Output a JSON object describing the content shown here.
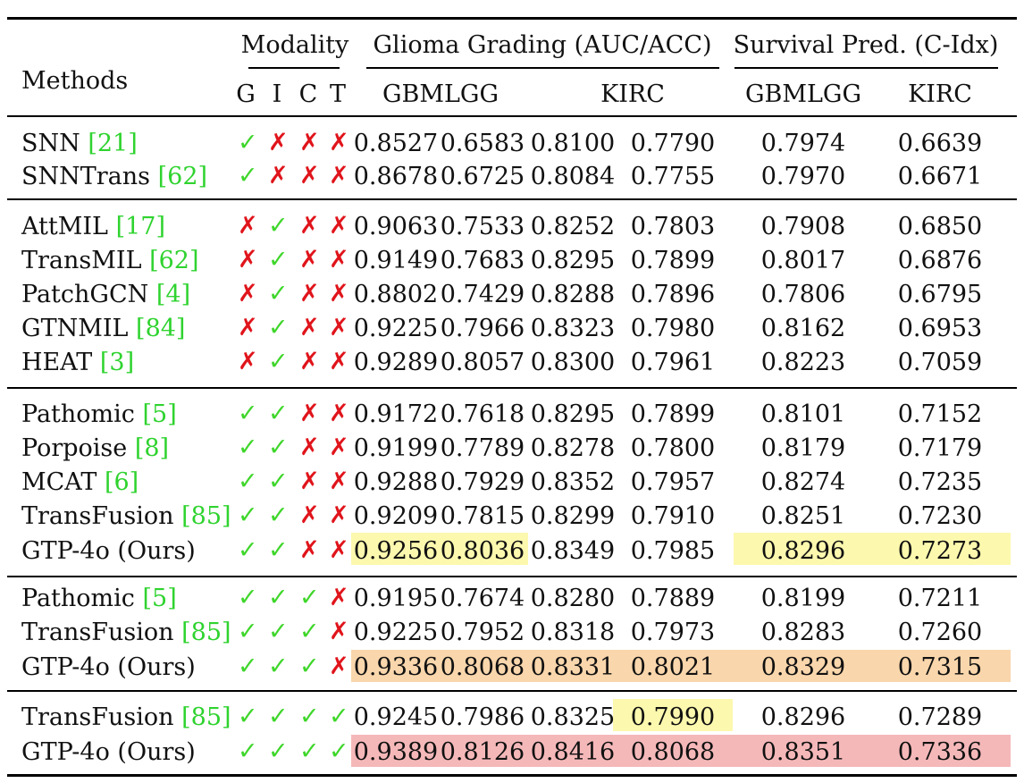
{
  "header": {
    "methods": "Methods",
    "modality": "Modality",
    "glioma": "Glioma Grading (AUC/ACC)",
    "survival": "Survival Pred. (C-Idx)",
    "modality_letters": [
      "G",
      "I",
      "C",
      "T"
    ],
    "gbmlgg": "GBMLGG",
    "kirc": "KIRC",
    "gbmlgg2": "GBMLGG",
    "kirc2": "KIRC"
  },
  "colors": {
    "highlight_yellow": "#fcf8ae",
    "highlight_orange": "#f9d6ac",
    "highlight_red": "#f5b8b9",
    "ref_green": "#2fd32f",
    "check_green": "#3fd62b",
    "cross_red": "#e0141b"
  },
  "rows": [
    {
      "name": "SNN",
      "ref": "[21]",
      "mods": [
        "check",
        "cross",
        "cross",
        "cross"
      ],
      "vals": [
        "0.8527",
        "0.6583",
        "0.8100",
        "0.7790",
        "0.7974",
        "0.6639"
      ]
    },
    {
      "name": "SNNTrans",
      "ref": "[62]",
      "mods": [
        "check",
        "cross",
        "cross",
        "cross"
      ],
      "vals": [
        "0.8678",
        "0.6725",
        "0.8084",
        "0.7755",
        "0.7970",
        "0.6671"
      ]
    },
    {
      "name": "AttMIL",
      "ref": "[17]",
      "mods": [
        "cross",
        "check",
        "cross",
        "cross"
      ],
      "vals": [
        "0.9063",
        "0.7533",
        "0.8252",
        "0.7803",
        "0.7908",
        "0.6850"
      ]
    },
    {
      "name": "TransMIL",
      "ref": "[62]",
      "mods": [
        "cross",
        "check",
        "cross",
        "cross"
      ],
      "vals": [
        "0.9149",
        "0.7683",
        "0.8295",
        "0.7899",
        "0.8017",
        "0.6876"
      ]
    },
    {
      "name": "PatchGCN",
      "ref": "[4]",
      "mods": [
        "cross",
        "check",
        "cross",
        "cross"
      ],
      "vals": [
        "0.8802",
        "0.7429",
        "0.8288",
        "0.7896",
        "0.7806",
        "0.6795"
      ]
    },
    {
      "name": "GTNMIL",
      "ref": "[84]",
      "mods": [
        "cross",
        "check",
        "cross",
        "cross"
      ],
      "vals": [
        "0.9225",
        "0.7966",
        "0.8323",
        "0.7980",
        "0.8162",
        "0.6953"
      ]
    },
    {
      "name": "HEAT",
      "ref": "[3]",
      "mods": [
        "cross",
        "check",
        "cross",
        "cross"
      ],
      "vals": [
        "0.9289",
        "0.8057",
        "0.8300",
        "0.7961",
        "0.8223",
        "0.7059"
      ]
    },
    {
      "name": "Pathomic",
      "ref": "[5]",
      "mods": [
        "check",
        "check",
        "cross",
        "cross"
      ],
      "vals": [
        "0.9172",
        "0.7618",
        "0.8295",
        "0.7899",
        "0.8101",
        "0.7152"
      ]
    },
    {
      "name": "Porpoise",
      "ref": "[8]",
      "mods": [
        "check",
        "check",
        "cross",
        "cross"
      ],
      "vals": [
        "0.9199",
        "0.7789",
        "0.8278",
        "0.7800",
        "0.8179",
        "0.7179"
      ]
    },
    {
      "name": "MCAT",
      "ref": "[6]",
      "mods": [
        "check",
        "check",
        "cross",
        "cross"
      ],
      "vals": [
        "0.9288",
        "0.7929",
        "0.8352",
        "0.7957",
        "0.8274",
        "0.7235"
      ]
    },
    {
      "name": "TransFusion",
      "ref": "[85]",
      "mods": [
        "check",
        "check",
        "cross",
        "cross"
      ],
      "vals": [
        "0.9209",
        "0.7815",
        "0.8299",
        "0.7910",
        "0.8251",
        "0.7230"
      ]
    },
    {
      "name": "GTP-4o (Ours)",
      "ref": "",
      "mods": [
        "check",
        "check",
        "cross",
        "cross"
      ],
      "vals": [
        "0.9256",
        "0.8036",
        "0.8349",
        "0.7985",
        "0.8296",
        "0.7273"
      ]
    },
    {
      "name": "Pathomic",
      "ref": "[5]",
      "mods": [
        "check",
        "check",
        "check",
        "cross"
      ],
      "vals": [
        "0.9195",
        "0.7674",
        "0.8280",
        "0.7889",
        "0.8199",
        "0.7211"
      ]
    },
    {
      "name": "TransFusion",
      "ref": "[85]",
      "mods": [
        "check",
        "check",
        "check",
        "cross"
      ],
      "vals": [
        "0.9225",
        "0.7952",
        "0.8318",
        "0.7973",
        "0.8283",
        "0.7260"
      ]
    },
    {
      "name": "GTP-4o (Ours)",
      "ref": "",
      "mods": [
        "check",
        "check",
        "check",
        "cross"
      ],
      "vals": [
        "0.9336",
        "0.8068",
        "0.8331",
        "0.8021",
        "0.8329",
        "0.7315"
      ]
    },
    {
      "name": "TransFusion",
      "ref": "[85]",
      "mods": [
        "check",
        "check",
        "check",
        "check"
      ],
      "vals": [
        "0.9245",
        "0.7986",
        "0.8325",
        "0.7990",
        "0.8296",
        "0.7289"
      ]
    },
    {
      "name": "GTP-4o (Ours)",
      "ref": "",
      "mods": [
        "check",
        "check",
        "check",
        "check"
      ],
      "vals": [
        "0.9389",
        "0.8126",
        "0.8416",
        "0.8068",
        "0.8351",
        "0.7336"
      ]
    }
  ]
}
